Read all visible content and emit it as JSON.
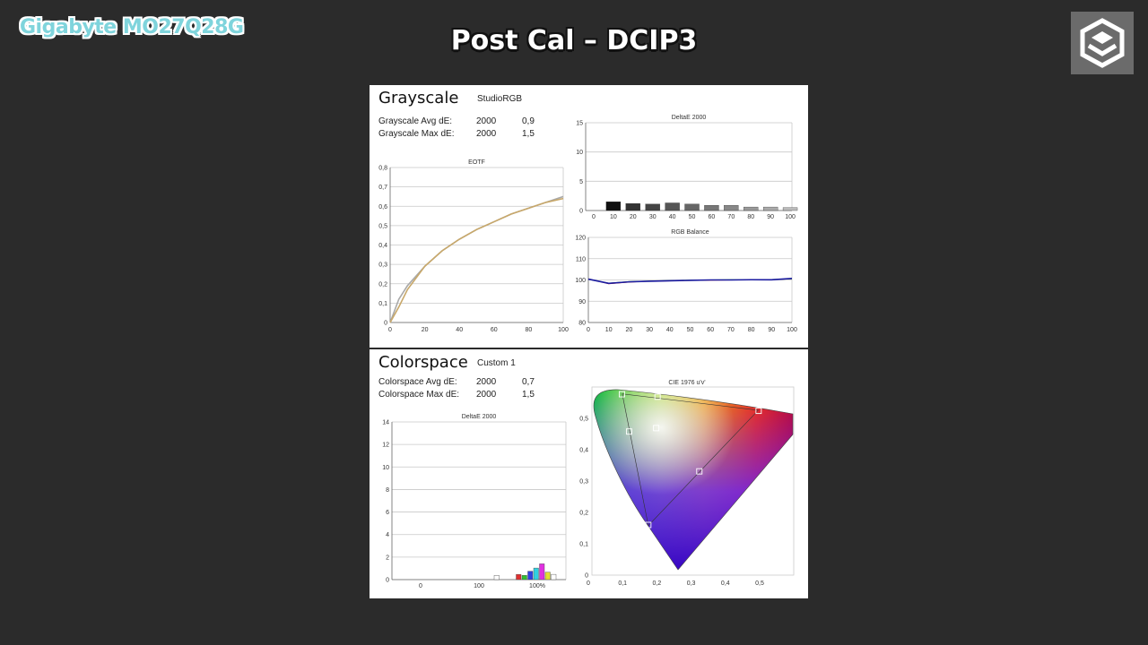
{
  "header": {
    "brand": "Gigabyte MO27Q28G",
    "title": "Post Cal – DCIP3"
  },
  "grayscale": {
    "heading": "Grayscale",
    "profile": "StudioRGB",
    "avg_label": "Grayscale Avg dE:",
    "avg_std": "2000",
    "avg_val": "0,9",
    "max_label": "Grayscale Max dE:",
    "max_std": "2000",
    "max_val": "1,5"
  },
  "colorspace": {
    "heading": "Colorspace",
    "profile": "Custom 1",
    "avg_label": "Colorspace Avg dE:",
    "avg_std": "2000",
    "avg_val": "0,7",
    "max_label": "Colorspace Max dE:",
    "max_std": "2000",
    "max_val": "1,5"
  },
  "colors": {
    "bg": "#2b2b2b",
    "brand": "#7fd4dc",
    "eotf_target": "#a9a9a9",
    "eotf_measured": "#c8a86a",
    "rgb_line": "#1a1aa0"
  },
  "chart_data": [
    {
      "id": "eotf",
      "type": "line",
      "title": "EOTF",
      "xlim": [
        0,
        100
      ],
      "ylim": [
        0,
        0.8
      ],
      "xticks": [
        "0",
        "20",
        "40",
        "60",
        "80",
        "100"
      ],
      "yticks": [
        "0",
        "0,1",
        "0,2",
        "0,3",
        "0,4",
        "0,5",
        "0,6",
        "0,7",
        "0,8"
      ],
      "x": [
        0,
        5,
        10,
        20,
        30,
        40,
        50,
        60,
        70,
        80,
        90,
        100
      ],
      "series": [
        {
          "values": [
            0,
            0.12,
            0.19,
            0.29,
            0.37,
            0.43,
            0.48,
            0.52,
            0.56,
            0.59,
            0.62,
            0.65
          ]
        },
        {
          "values": [
            0,
            0.08,
            0.17,
            0.29,
            0.37,
            0.43,
            0.48,
            0.52,
            0.56,
            0.59,
            0.62,
            0.64
          ]
        }
      ]
    },
    {
      "id": "gs_de",
      "type": "bar",
      "title": "DeltaE 2000",
      "ylim": [
        0,
        15
      ],
      "yticks": [
        "0",
        "5",
        "10",
        "15"
      ],
      "categories": [
        "0",
        "10",
        "20",
        "30",
        "40",
        "50",
        "60",
        "70",
        "80",
        "90",
        "100"
      ],
      "values": [
        0,
        1.5,
        1.2,
        1.1,
        1.3,
        1.1,
        0.9,
        0.9,
        0.6,
        0.6,
        0.5
      ],
      "bar_colors": [
        "#111",
        "#111",
        "#333",
        "#444",
        "#555",
        "#666",
        "#777",
        "#888",
        "#999",
        "#aaa",
        "#bbb"
      ]
    },
    {
      "id": "rgb",
      "type": "line",
      "title": "RGB Balance",
      "xlim": [
        0,
        100
      ],
      "ylim": [
        80,
        120
      ],
      "xticks": [
        "0",
        "10",
        "20",
        "30",
        "40",
        "50",
        "60",
        "70",
        "80",
        "90",
        "100"
      ],
      "yticks": [
        "80",
        "90",
        "100",
        "110",
        "120"
      ],
      "x": [
        0,
        10,
        20,
        30,
        40,
        50,
        60,
        70,
        80,
        90,
        100
      ],
      "series": [
        {
          "values": [
            100.5,
            98.2,
            99,
            99.4,
            99.6,
            99.8,
            99.9,
            100,
            100,
            100.1,
            100.6
          ]
        },
        {
          "values": [
            100.3,
            98.5,
            99.2,
            99.5,
            99.7,
            99.9,
            100,
            100.1,
            100,
            100.2,
            100.5
          ]
        },
        {
          "values": [
            100.4,
            98.4,
            99.1,
            99.4,
            99.6,
            99.8,
            100,
            100,
            100.1,
            100.1,
            100.7
          ]
        }
      ]
    },
    {
      "id": "cs_de",
      "type": "bar",
      "title": "DeltaE 2000",
      "ylim": [
        0,
        15
      ],
      "yticks": [
        "0",
        "2",
        "4",
        "6",
        "8",
        "10",
        "12",
        "14"
      ],
      "xtick_labels": [
        "0",
        "100",
        "100%"
      ],
      "values": [
        0.4,
        0.5,
        0.4,
        0.8,
        1.1,
        1.5,
        0.7,
        0.5
      ],
      "bar_colors": [
        "#ffffff",
        "#e03030",
        "#30c030",
        "#3040e0",
        "#30d0e0",
        "#e030e0",
        "#e0e030",
        "#ffffff"
      ]
    },
    {
      "id": "cie",
      "type": "scatter",
      "title": "CIE 1976 u'v'",
      "xlim": [
        0,
        0.6
      ],
      "ylim": [
        0,
        0.55
      ],
      "xticks": [
        "0",
        "0,1",
        "0,2",
        "0,3",
        "0,4",
        "0,5"
      ],
      "yticks": [
        "0",
        "0,1",
        "0,2",
        "0,3",
        "0,4",
        "0,5"
      ],
      "gamut": [
        [
          0.496,
          0.526
        ],
        [
          0.099,
          0.578
        ],
        [
          0.175,
          0.158
        ]
      ],
      "points": [
        [
          0.497,
          0.524
        ],
        [
          0.098,
          0.577
        ],
        [
          0.175,
          0.16
        ],
        [
          0.198,
          0.469
        ],
        [
          0.119,
          0.458
        ],
        [
          0.324,
          0.331
        ],
        [
          0.202,
          0.569
        ]
      ]
    }
  ]
}
